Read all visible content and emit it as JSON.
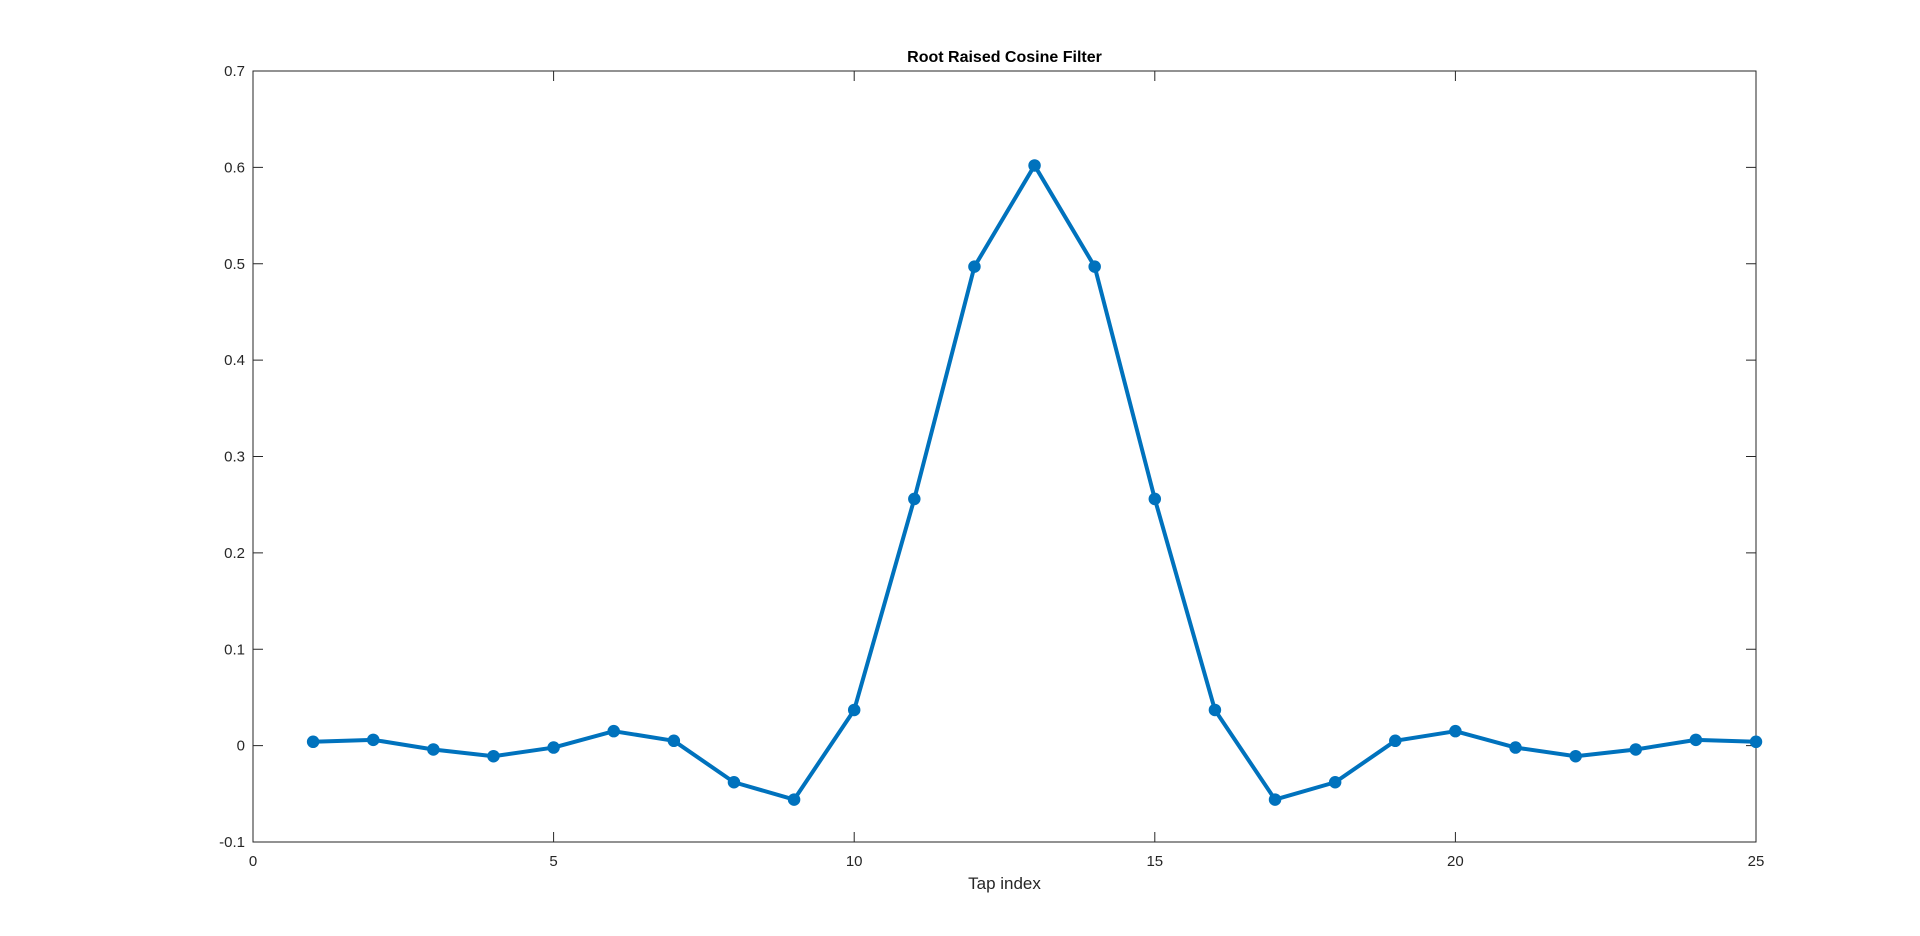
{
  "chart_data": {
    "type": "line",
    "title": "Root Raised Cosine Filter",
    "xlabel": "Tap index",
    "ylabel": "",
    "xlim": [
      0,
      25
    ],
    "ylim": [
      -0.1,
      0.7
    ],
    "xticks": [
      "0",
      "5",
      "10",
      "15",
      "20",
      "25"
    ],
    "yticks": [
      "-0.1",
      "0",
      "0.1",
      "0.2",
      "0.3",
      "0.4",
      "0.5",
      "0.6",
      "0.7"
    ],
    "grid": false,
    "box": true,
    "series": [
      {
        "color": "#0072BD",
        "marker": "filled-circle",
        "x": [
          1,
          2,
          3,
          4,
          5,
          6,
          7,
          8,
          9,
          10,
          11,
          12,
          13,
          14,
          15,
          16,
          17,
          18,
          19,
          20,
          21,
          22,
          23,
          24,
          25
        ],
        "y": [
          0.004,
          0.006,
          -0.004,
          -0.011,
          -0.002,
          0.015,
          0.005,
          -0.038,
          -0.056,
          0.037,
          0.256,
          0.497,
          0.602,
          0.497,
          0.256,
          0.037,
          -0.056,
          -0.038,
          0.005,
          0.015,
          -0.002,
          -0.011,
          -0.004,
          0.006,
          0.004
        ]
      }
    ]
  }
}
